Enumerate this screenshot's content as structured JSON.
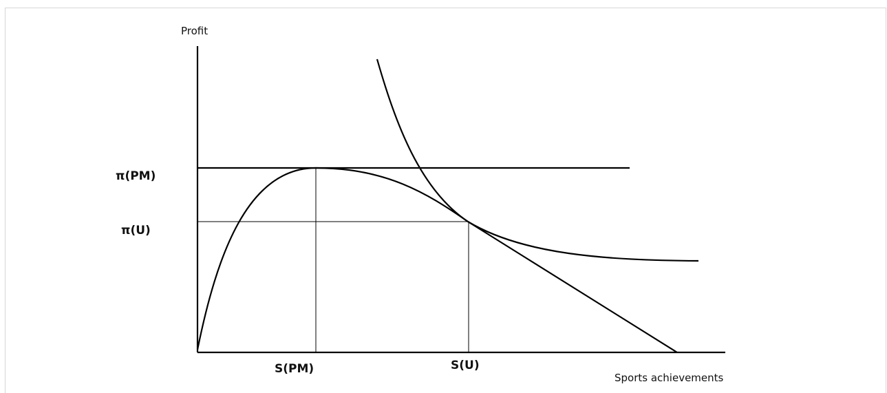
{
  "diagram": {
    "y_axis_label": "Profit",
    "x_axis_label": "Sports achievements",
    "y_marks": {
      "pi_pm": "π(PM)",
      "pi_u": "π(U)"
    },
    "x_marks": {
      "s_pm": "S(PM)",
      "s_u": "S(U)"
    }
  }
}
